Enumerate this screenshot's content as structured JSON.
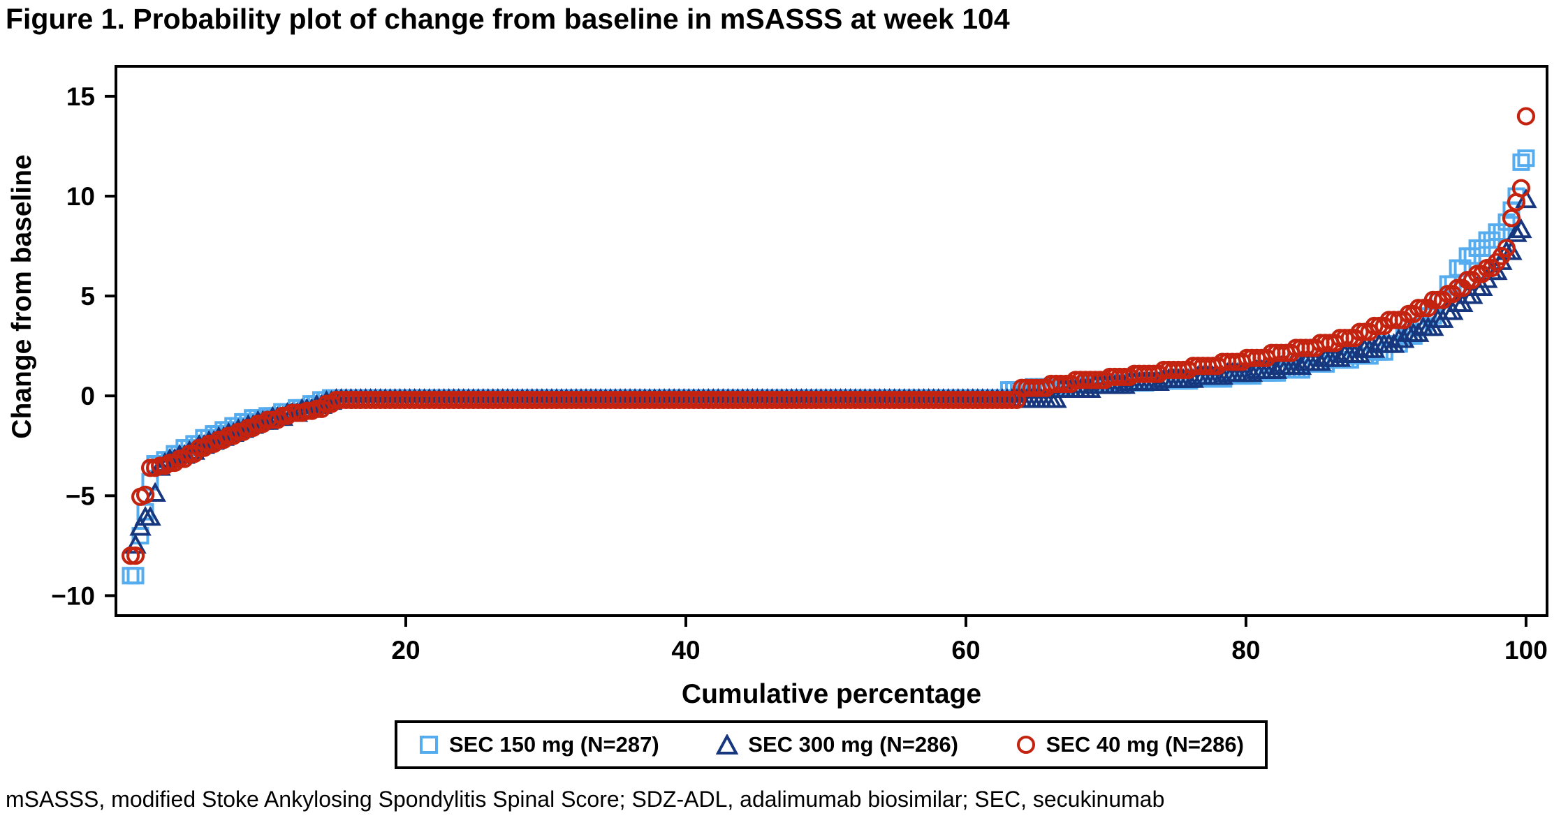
{
  "title": "Figure 1. Probability plot of change from baseline in mSASSS at week 104",
  "footnote": "mSASSS, modified Stoke Ankylosing Spondylitis Spinal Score; SDZ-ADL, adalimumab biosimilar; SEC, secukinumab",
  "colors": {
    "sec150": "#55ACEE",
    "sec300": "#16367D",
    "sec40": "#C42310",
    "axis": "#000000"
  },
  "chart_data": {
    "type": "scatter",
    "title": "Figure 1. Probability plot of change from baseline in mSASSS at week 104",
    "xlabel": "Cumulative percentage",
    "ylabel": "Change from baseline",
    "x_ticks": [
      20,
      40,
      60,
      80,
      100
    ],
    "y_ticks": [
      15,
      10,
      5,
      0,
      -5,
      -10
    ],
    "xlim": [
      -0.7,
      101.5
    ],
    "ylim": [
      -11.0,
      16.5
    ],
    "grid": false,
    "legend_position": "bottom",
    "note": "Each series is an empirical quantile (probability) plot: markers are drawn at every cumulative-percentage step (100/N %) holding the change-from-baseline value of the most recent breakpoint below. Breakpoints [cumulative %, change from baseline] read from the figure.",
    "series": [
      {
        "name": "SEC 150 mg (N=287)",
        "marker": "square",
        "color": "#55ACEE",
        "n": 287,
        "points": [
          [
            0.3,
            -9
          ],
          [
            0.95,
            -7.0
          ],
          [
            1.3,
            -5.8
          ],
          [
            1.65,
            -4.3
          ],
          [
            2.0,
            -3.4
          ],
          [
            2.7,
            -3.2
          ],
          [
            3.4,
            -2.9
          ],
          [
            4.1,
            -2.6
          ],
          [
            4.8,
            -2.4
          ],
          [
            5.5,
            -2.1
          ],
          [
            6.2,
            -1.9
          ],
          [
            6.9,
            -1.7
          ],
          [
            7.6,
            -1.5
          ],
          [
            8.3,
            -1.3
          ],
          [
            9.0,
            -1.1
          ],
          [
            10.1,
            -1.0
          ],
          [
            11.1,
            -0.8
          ],
          [
            12.1,
            -0.6
          ],
          [
            13.2,
            -0.4
          ],
          [
            13.9,
            -0.2
          ],
          [
            14.6,
            -0.1
          ],
          [
            63.0,
            0.3
          ],
          [
            64.5,
            0.45
          ],
          [
            67.0,
            0.55
          ],
          [
            70.0,
            0.65
          ],
          [
            73.0,
            0.75
          ],
          [
            76.0,
            0.85
          ],
          [
            78.5,
            1.0
          ],
          [
            80.5,
            1.15
          ],
          [
            82.5,
            1.3
          ],
          [
            84.3,
            1.6
          ],
          [
            86.0,
            1.8
          ],
          [
            87.5,
            2.0
          ],
          [
            89.0,
            2.2
          ],
          [
            90.2,
            2.6
          ],
          [
            91.2,
            3.0
          ],
          [
            92.1,
            3.5
          ],
          [
            92.9,
            4.0
          ],
          [
            93.7,
            4.8
          ],
          [
            94.4,
            5.6
          ],
          [
            95.1,
            6.4
          ],
          [
            95.8,
            7.0
          ],
          [
            96.5,
            7.4
          ],
          [
            97.2,
            7.8
          ],
          [
            97.9,
            8.2
          ],
          [
            98.5,
            8.7
          ],
          [
            98.9,
            9.3
          ],
          [
            99.25,
            10.0
          ],
          [
            99.6,
            11.7
          ],
          [
            99.95,
            11.9
          ]
        ]
      },
      {
        "name": "SEC 300 mg (N=286)",
        "marker": "triangle",
        "color": "#16367D",
        "n": 286,
        "points": [
          [
            0.65,
            -7.5
          ],
          [
            1.0,
            -6.6
          ],
          [
            1.35,
            -6.1
          ],
          [
            1.85,
            -4.9
          ],
          [
            2.2,
            -4.2
          ],
          [
            2.4,
            -3.6
          ],
          [
            2.75,
            -3.4
          ],
          [
            3.1,
            -3.2
          ],
          [
            3.8,
            -3.0
          ],
          [
            4.5,
            -2.8
          ],
          [
            5.2,
            -2.5
          ],
          [
            5.9,
            -2.3
          ],
          [
            6.6,
            -2.1
          ],
          [
            7.3,
            -1.9
          ],
          [
            8.0,
            -1.7
          ],
          [
            8.7,
            -1.5
          ],
          [
            9.4,
            -1.3
          ],
          [
            10.4,
            -1.1
          ],
          [
            11.4,
            -0.9
          ],
          [
            12.4,
            -0.7
          ],
          [
            13.3,
            -0.5
          ],
          [
            14.0,
            -0.3
          ],
          [
            14.7,
            -0.2
          ],
          [
            66.5,
            0.3
          ],
          [
            69.0,
            0.5
          ],
          [
            71.5,
            0.65
          ],
          [
            74.0,
            0.8
          ],
          [
            76.5,
            0.95
          ],
          [
            78.5,
            1.1
          ],
          [
            80.5,
            1.25
          ],
          [
            82.3,
            1.45
          ],
          [
            84.0,
            1.65
          ],
          [
            85.5,
            1.85
          ],
          [
            87.0,
            2.05
          ],
          [
            88.3,
            2.3
          ],
          [
            89.5,
            2.55
          ],
          [
            90.6,
            2.8
          ],
          [
            91.6,
            3.1
          ],
          [
            92.5,
            3.4
          ],
          [
            93.4,
            3.8
          ],
          [
            94.2,
            4.2
          ],
          [
            95.0,
            4.6
          ],
          [
            95.7,
            5.0
          ],
          [
            96.3,
            5.4
          ],
          [
            96.9,
            5.8
          ],
          [
            97.5,
            6.2
          ],
          [
            98.1,
            6.7
          ],
          [
            98.6,
            7.2
          ],
          [
            99.0,
            7.7
          ],
          [
            99.3,
            8.1
          ],
          [
            99.65,
            8.3
          ],
          [
            99.99,
            9.8
          ]
        ]
      },
      {
        "name": "SEC 40 mg (N=286)",
        "marker": "circle",
        "color": "#C42310",
        "n": 286,
        "points": [
          [
            0.3,
            -8
          ],
          [
            0.8,
            -5.05
          ],
          [
            1.15,
            -4.95
          ],
          [
            1.7,
            -3.6
          ],
          [
            2.4,
            -3.5
          ],
          [
            3.1,
            -3.35
          ],
          [
            3.8,
            -3.15
          ],
          [
            4.5,
            -2.9
          ],
          [
            5.2,
            -2.6
          ],
          [
            5.9,
            -2.4
          ],
          [
            6.6,
            -2.2
          ],
          [
            7.3,
            -2.0
          ],
          [
            8.0,
            -1.8
          ],
          [
            8.7,
            -1.6
          ],
          [
            9.4,
            -1.4
          ],
          [
            10.1,
            -1.2
          ],
          [
            11.0,
            -1.0
          ],
          [
            11.8,
            -0.85
          ],
          [
            12.6,
            -0.75
          ],
          [
            13.4,
            -0.65
          ],
          [
            14.1,
            -0.4
          ],
          [
            14.8,
            -0.2
          ],
          [
            63.8,
            0.4
          ],
          [
            65.8,
            0.6
          ],
          [
            67.8,
            0.8
          ],
          [
            70.0,
            0.95
          ],
          [
            72.0,
            1.1
          ],
          [
            74.0,
            1.3
          ],
          [
            76.0,
            1.5
          ],
          [
            78.0,
            1.7
          ],
          [
            80.0,
            1.9
          ],
          [
            81.8,
            2.15
          ],
          [
            83.5,
            2.4
          ],
          [
            85.0,
            2.65
          ],
          [
            86.5,
            2.9
          ],
          [
            87.8,
            3.2
          ],
          [
            89.0,
            3.5
          ],
          [
            90.2,
            3.8
          ],
          [
            91.3,
            4.1
          ],
          [
            92.3,
            4.4
          ],
          [
            93.2,
            4.8
          ],
          [
            94.1,
            5.1
          ],
          [
            94.9,
            5.4
          ],
          [
            95.7,
            5.8
          ],
          [
            96.4,
            6.1
          ],
          [
            97.0,
            6.4
          ],
          [
            97.6,
            6.7
          ],
          [
            98.2,
            7.0
          ],
          [
            98.6,
            7.4
          ],
          [
            98.9,
            8.9
          ],
          [
            99.3,
            9.7
          ],
          [
            99.65,
            10.4
          ],
          [
            99.99,
            14
          ]
        ]
      }
    ]
  }
}
